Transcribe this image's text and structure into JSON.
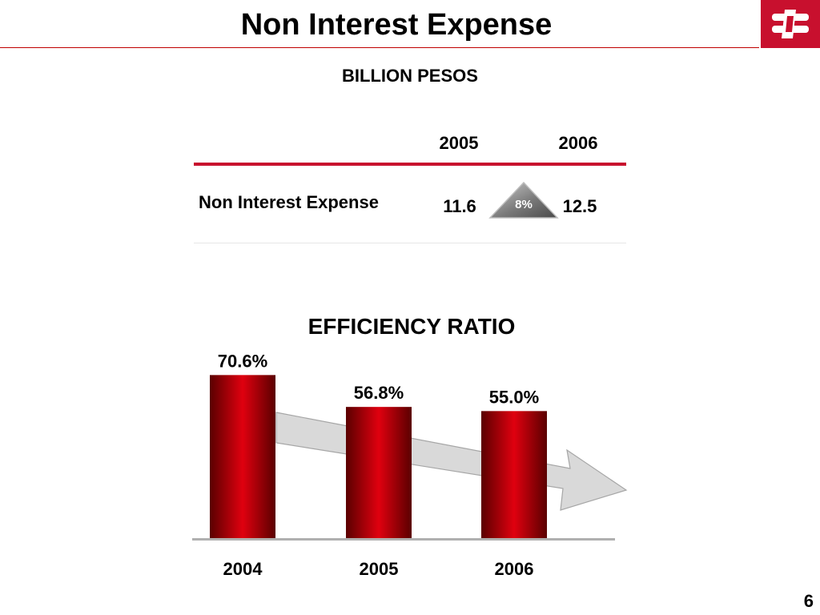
{
  "title": "Non Interest Expense",
  "logo": {
    "icon": "bank-logo-icon",
    "color": "#c8102e"
  },
  "subtitle": "BILLION PESOS",
  "table": {
    "years": [
      "2005",
      "2006"
    ],
    "row_label": "Non Interest Expense",
    "values": [
      "11.6",
      "12.5"
    ],
    "change": "8%"
  },
  "chart_data": {
    "type": "bar",
    "title": "EFFICIENCY RATIO",
    "categories": [
      "2004",
      "2005",
      "2006"
    ],
    "values": [
      70.6,
      56.8,
      55.0
    ],
    "data_labels": [
      "70.6%",
      "56.8%",
      "55.0%"
    ],
    "unit": "%",
    "ylim": [
      0,
      78
    ],
    "grid": false,
    "trend_arrow": "downward",
    "bar_color": "#c8102e"
  },
  "page_number": "6"
}
